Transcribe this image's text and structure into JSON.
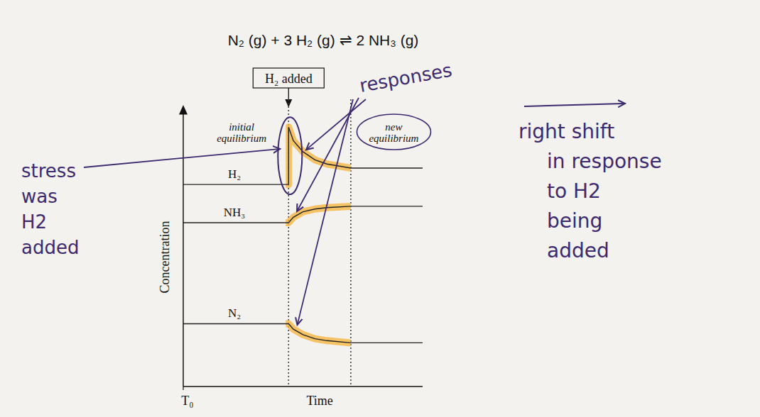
{
  "chart_data": {
    "type": "line",
    "title": "N₂ (g) + 3 H₂ (g) ⇌ 2 NH₃ (g)",
    "y_label": "Concentration",
    "x_label": "Time",
    "xlim": [
      0,
      10
    ],
    "ylim": [
      0,
      10
    ],
    "xticks": [
      {
        "value": 0,
        "label": "T₀"
      }
    ],
    "tick_labels": "x",
    "grid": false,
    "x": [
      0,
      4.4,
      4.4,
      4.6,
      5,
      5.5,
      6,
      7,
      10
    ],
    "series": [
      {
        "name": "H₂",
        "color": "#222222",
        "values": [
          7.4,
          7.4,
          9.5,
          9.0,
          8.6,
          8.3,
          8.15,
          8.0,
          8.0
        ]
      },
      {
        "name": "NH₃",
        "color": "#222222",
        "values": [
          6.0,
          6.0,
          6.0,
          6.2,
          6.4,
          6.5,
          6.55,
          6.6,
          6.6
        ]
      },
      {
        "name": "N₂",
        "color": "#222222",
        "values": [
          2.3,
          2.3,
          2.3,
          2.1,
          1.9,
          1.75,
          1.68,
          1.6,
          1.6
        ]
      }
    ],
    "event_lines": [
      4.4,
      7
    ],
    "event_label": "H₂ added",
    "initial_label": [
      "initial",
      "equilibrium"
    ],
    "new_label": [
      "new",
      "equilibrium"
    ],
    "note_stress": [
      "stress",
      "was",
      "H2",
      "added"
    ],
    "note_responses": "responses",
    "note_shift": [
      "right shift",
      "in response",
      "to H2",
      "being",
      "added"
    ]
  }
}
